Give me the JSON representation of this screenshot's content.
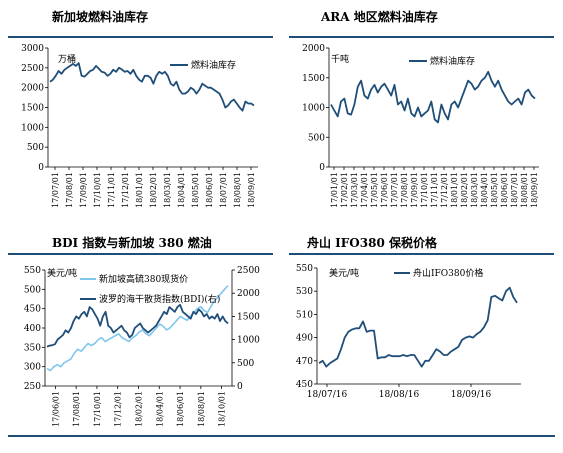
{
  "colors": {
    "dark_blue": "#1f4e79",
    "light_blue": "#7fc6ef",
    "rule": "#1f4e79"
  },
  "panels": {
    "p1": {
      "title": "新加坡燃料油库存"
    },
    "p2": {
      "title": "ARA 地区燃料油库存"
    },
    "p3": {
      "title": "BDI 指数与新加坡 380 燃油"
    },
    "p4": {
      "title": "舟山 IFO380 保税价格"
    }
  },
  "chart_data": [
    {
      "id": "p1",
      "type": "line",
      "unit_label": "万桶",
      "x_tick_labels": [
        "17/07/01",
        "17/08/01",
        "17/09/01",
        "17/10/01",
        "17/11/01",
        "17/12/01",
        "18/01/01",
        "18/02/01",
        "18/03/01",
        "18/04/01",
        "18/05/01",
        "18/06/01",
        "18/07/01",
        "18/08/01",
        "18/09/01"
      ],
      "ylim": [
        0,
        3000
      ],
      "y_ticks": [
        0,
        500,
        1000,
        1500,
        2000,
        2500,
        3000
      ],
      "grid": false,
      "legend_position": "top-right",
      "series": [
        {
          "name": "燃料油库存",
          "color_key": "dark_blue",
          "values": [
            2150,
            2200,
            2300,
            2420,
            2350,
            2450,
            2500,
            2550,
            2600,
            2550,
            2620,
            2300,
            2280,
            2350,
            2420,
            2450,
            2550,
            2480,
            2400,
            2380,
            2300,
            2350,
            2450,
            2400,
            2500,
            2460,
            2400,
            2420,
            2350,
            2450,
            2300,
            2200,
            2150,
            2300,
            2300,
            2250,
            2100,
            2300,
            2400,
            2350,
            2400,
            2300,
            2100,
            2050,
            2150,
            1950,
            1850,
            1850,
            1900,
            2000,
            1950,
            1850,
            1950,
            2100,
            2050,
            2000,
            2000,
            1950,
            1900,
            1850,
            1700,
            1500,
            1550,
            1650,
            1700,
            1600,
            1500,
            1420,
            1650,
            1600,
            1600,
            1550
          ]
        }
      ]
    },
    {
      "id": "p2",
      "type": "line",
      "unit_label": "千吨",
      "x_tick_labels": [
        "17/01/01",
        "17/02/01",
        "17/03/01",
        "17/04/01",
        "17/05/01",
        "17/06/01",
        "17/07/01",
        "17/08/01",
        "17/09/01",
        "17/10/01",
        "17/11/01",
        "17/12/01",
        "18/01/01",
        "18/02/01",
        "18/03/01",
        "18/04/01",
        "18/05/01",
        "18/06/01",
        "18/07/01",
        "18/08/01",
        "18/09/01"
      ],
      "ylim": [
        0,
        2000
      ],
      "y_ticks": [
        0,
        500,
        1000,
        1500,
        2000
      ],
      "grid": false,
      "legend_position": "top-right",
      "series": [
        {
          "name": "燃料油库存",
          "color_key": "dark_blue",
          "values": [
            1050,
            950,
            850,
            1100,
            1150,
            900,
            880,
            1050,
            1350,
            1450,
            1200,
            1150,
            1300,
            1380,
            1250,
            1350,
            1400,
            1300,
            1200,
            1380,
            1050,
            1100,
            950,
            1150,
            900,
            850,
            1000,
            850,
            900,
            950,
            1100,
            800,
            750,
            1050,
            900,
            800,
            1050,
            1100,
            1000,
            1150,
            1300,
            1450,
            1400,
            1300,
            1350,
            1450,
            1500,
            1600,
            1450,
            1350,
            1450,
            1300,
            1200,
            1100,
            1050,
            1100,
            1150,
            1050,
            1250,
            1300,
            1200,
            1150
          ]
        }
      ]
    },
    {
      "id": "p3",
      "type": "line",
      "unit_label": "美元/吨",
      "x_tick_labels": [
        "17/06/01",
        "17/08/01",
        "17/10/01",
        "17/12/01",
        "18/02/01",
        "18/04/01",
        "18/06/01",
        "18/08/01",
        "18/10/01"
      ],
      "y_left_lim": [
        250,
        550
      ],
      "y_left_ticks": [
        250,
        300,
        350,
        400,
        450,
        500,
        550
      ],
      "y_right_lim": [
        0,
        2500
      ],
      "y_right_ticks": [
        0,
        500,
        1000,
        1500,
        2000,
        2500
      ],
      "grid": false,
      "legend_position": "top-left",
      "series": [
        {
          "name": "新加坡高硫380现货价",
          "axis": "left",
          "color_key": "light_blue",
          "values": [
            295,
            290,
            300,
            305,
            300,
            310,
            315,
            320,
            335,
            345,
            340,
            350,
            360,
            355,
            360,
            370,
            375,
            365,
            370,
            375,
            380,
            385,
            375,
            370,
            365,
            375,
            380,
            390,
            395,
            385,
            380,
            390,
            400,
            410,
            405,
            395,
            400,
            410,
            420,
            430,
            425,
            420,
            430,
            440,
            450,
            455,
            445,
            440,
            455,
            470,
            480,
            490,
            500,
            510
          ]
        },
        {
          "name": "波罗的海干散货指数(BDI)(右)",
          "axis": "right",
          "color_key": "dark_blue",
          "values": [
            850,
            870,
            880,
            900,
            1000,
            1050,
            1100,
            1200,
            1150,
            1250,
            1400,
            1500,
            1450,
            1550,
            1600,
            1500,
            1700,
            1650,
            1550,
            1450,
            1300,
            1500,
            1600,
            1300,
            1250,
            1150,
            1200,
            1250,
            1300,
            1200,
            1150,
            1050,
            1100,
            1250,
            1300,
            1350,
            1250,
            1200,
            1150,
            1200,
            1250,
            1300,
            1400,
            1500,
            1600,
            1550,
            1700,
            1650,
            1600,
            1700,
            1750,
            1600,
            1550,
            1500,
            1450,
            1600,
            1550,
            1650,
            1600,
            1500,
            1550,
            1450,
            1500,
            1450,
            1550,
            1400,
            1500,
            1400,
            1350
          ]
        }
      ]
    },
    {
      "id": "p4",
      "type": "line",
      "unit_label": "美元/吨",
      "x_tick_labels": [
        "18/07/16",
        "18/08/16",
        "18/09/16"
      ],
      "ylim": [
        450,
        550
      ],
      "y_ticks": [
        450,
        470,
        490,
        510,
        530,
        550
      ],
      "grid": false,
      "legend_position": "top-center",
      "series": [
        {
          "name": "舟山IFO380价格",
          "color_key": "dark_blue",
          "values": [
            468,
            470,
            465,
            468,
            470,
            472,
            480,
            490,
            495,
            497,
            498,
            498,
            504,
            495,
            496,
            496,
            472,
            473,
            473,
            475,
            474,
            474,
            474,
            475,
            474,
            475,
            475,
            470,
            465,
            470,
            470,
            475,
            480,
            478,
            475,
            475,
            478,
            480,
            482,
            488,
            490,
            491,
            490,
            493,
            495,
            499,
            505,
            525,
            526,
            524,
            522,
            530,
            533,
            525,
            520
          ]
        }
      ]
    }
  ]
}
